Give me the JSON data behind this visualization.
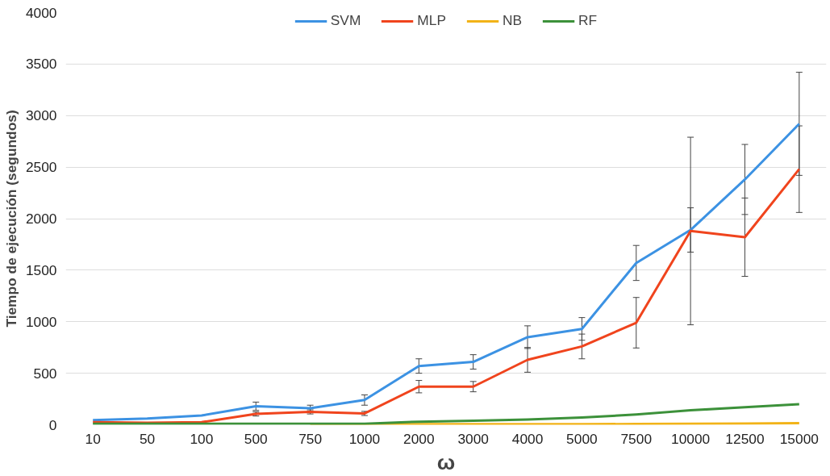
{
  "chart_data": {
    "type": "line",
    "xlabel": "ω",
    "ylabel": "Tiempo de ejecución (segundos)",
    "categories": [
      "10",
      "50",
      "100",
      "500",
      "750",
      "1000",
      "2000",
      "3000",
      "4000",
      "5000",
      "7500",
      "10000",
      "12500",
      "15000"
    ],
    "series": [
      {
        "name": "SVM",
        "color": "#3c92e3",
        "values": [
          45,
          60,
          90,
          180,
          160,
          240,
          570,
          610,
          850,
          930,
          1570,
          1890,
          2380,
          2920
        ],
        "errors": [
          null,
          null,
          null,
          40,
          30,
          50,
          70,
          70,
          110,
          110,
          170,
          215,
          340,
          500
        ]
      },
      {
        "name": "MLP",
        "color": "#f0441d",
        "values": [
          25,
          20,
          25,
          105,
          125,
          110,
          370,
          370,
          630,
          760,
          990,
          1880,
          1820,
          2480
        ],
        "errors": [
          null,
          null,
          null,
          20,
          20,
          20,
          60,
          50,
          120,
          120,
          245,
          910,
          380,
          420
        ]
      },
      {
        "name": "NB",
        "color": "#f2b318",
        "values": [
          null,
          null,
          null,
          null,
          5,
          5,
          5,
          5,
          5,
          5,
          8,
          10,
          12,
          15
        ]
      },
      {
        "name": "RF",
        "color": "#3c913a",
        "values": [
          10,
          10,
          10,
          10,
          10,
          10,
          30,
          40,
          50,
          70,
          100,
          140,
          170,
          200
        ]
      }
    ],
    "ylim": [
      0,
      4000
    ],
    "yticks": [
      0,
      500,
      1000,
      1500,
      2000,
      2500,
      3000,
      3500,
      4000
    ],
    "grid": "y",
    "legend": "top",
    "marker": "none",
    "line_style": "solid"
  }
}
